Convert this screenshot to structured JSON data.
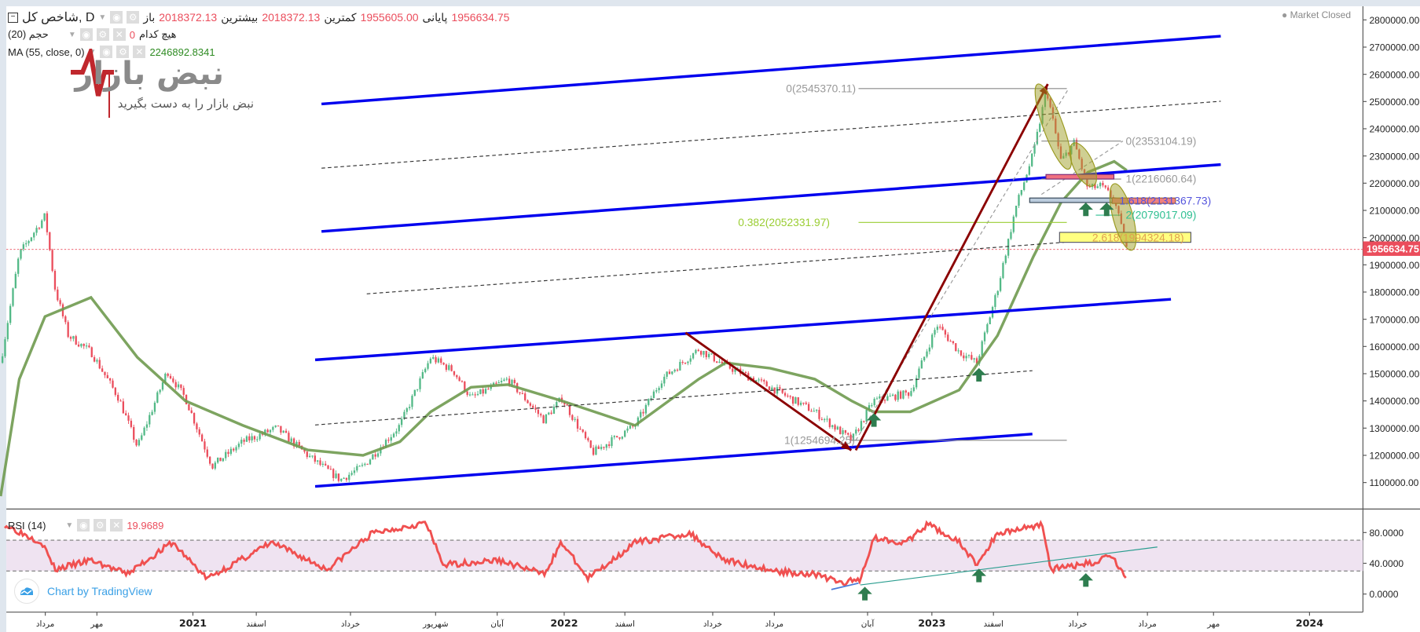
{
  "header": {
    "symbol": "شاخص کل, D",
    "open_label": "باز",
    "open": "2018372.13",
    "high_label": "بیشترین",
    "high": "2018372.13",
    "low_label": "کمترین",
    "low": "1955605.00",
    "close_label": "پایانی",
    "close": "1956634.75",
    "volume_label": "حجم (20)",
    "volume_none": "هیچ کدام",
    "volume_value": "0",
    "ma_label": "MA (55, close, 0)",
    "ma_value": "2246892.8341"
  },
  "status": "Market Closed",
  "logo": {
    "name": "نبض بازار",
    "tagline": "نبض بازار را به دست بگیرید"
  },
  "branding": "Chart by TradingView",
  "rsi": {
    "label": "RSI (14)",
    "value": "19.9689"
  },
  "last_price_label": "1956634.75",
  "colors": {
    "up": "#53b987",
    "down": "#eb4d5c",
    "ma": "#6f9a4f",
    "channel": "#0000ee",
    "arrow": "#8b0000",
    "rsi": "#f05050",
    "rsi_band": "#efe3f1"
  },
  "fib_labels": {
    "top": "0(2545370.11)",
    "bottom": "1(1254694.25)",
    "f0382": "0.382(2052331.97)",
    "ext0": "0(2353104.19)",
    "ext1": "1(2216060.64)",
    "ext1618": "1.618(2131367.73)",
    "ext2": "2(2079017.09)",
    "ext2618": "2.618(1994324.18)"
  },
  "chart_data": [
    {
      "type": "candlestick",
      "ylim": [
        1000000,
        2850000
      ],
      "y_ticks": [
        "2800000.00",
        "2700000.00",
        "2600000.00",
        "2500000.00",
        "2400000.00",
        "2300000.00",
        "2200000.00",
        "2100000.00",
        "2000000.00",
        "1900000.00",
        "1800000.00",
        "1700000.00",
        "1600000.00",
        "1500000.00",
        "1400000.00",
        "1300000.00",
        "1200000.00",
        "1100000.00"
      ],
      "x_ticks": [
        "مرداد",
        "مهر",
        "2021",
        "اسفند",
        "خرداد",
        "شهریور",
        "آبان",
        "2022",
        "اسفند",
        "خرداد",
        "مرداد",
        "آبان",
        "2023",
        "اسفند",
        "خرداد",
        "مرداد",
        "مهر",
        "2024"
      ],
      "close_path": [
        [
          "2020-06-24",
          1540000
        ],
        [
          "2020-07-12",
          1940000
        ],
        [
          "2020-08-07",
          2080000
        ],
        [
          "2020-08-17",
          1810000
        ],
        [
          "2020-08-30",
          1640000
        ],
        [
          "2020-09-22",
          1580000
        ],
        [
          "2020-10-19",
          1410000
        ],
        [
          "2020-11-07",
          1230000
        ],
        [
          "2020-12-06",
          1510000
        ],
        [
          "2020-12-24",
          1410000
        ],
        [
          "2021-01-20",
          1160000
        ],
        [
          "2021-02-20",
          1250000
        ],
        [
          "2021-03-23",
          1300000
        ],
        [
          "2021-04-23",
          1200000
        ],
        [
          "2021-05-25",
          1110000
        ],
        [
          "2021-06-17",
          1160000
        ],
        [
          "2021-07-23",
          1310000
        ],
        [
          "2021-08-23",
          1560000
        ],
        [
          "2021-09-15",
          1510000
        ],
        [
          "2021-10-02",
          1410000
        ],
        [
          "2021-11-08",
          1480000
        ],
        [
          "2021-12-13",
          1330000
        ],
        [
          "2021-12-31",
          1410000
        ],
        [
          "2022-01-31",
          1210000
        ],
        [
          "2022-03-12",
          1310000
        ],
        [
          "2022-04-08",
          1480000
        ],
        [
          "2022-05-14",
          1590000
        ],
        [
          "2022-06-10",
          1530000
        ],
        [
          "2022-07-24",
          1450000
        ],
        [
          "2022-09-07",
          1360000
        ],
        [
          "2022-10-13",
          1254694
        ],
        [
          "2022-11-04",
          1400000
        ],
        [
          "2022-12-10",
          1430000
        ],
        [
          "2023-01-06",
          1680000
        ],
        [
          "2023-01-28",
          1580000
        ],
        [
          "2023-02-15",
          1540000
        ],
        [
          "2023-03-05",
          1810000
        ],
        [
          "2023-03-23",
          2110000
        ],
        [
          "2023-04-10",
          2310000
        ],
        [
          "2023-04-23",
          2545370
        ],
        [
          "2023-05-07",
          2280000
        ],
        [
          "2023-05-20",
          2350000
        ],
        [
          "2023-06-03",
          2180000
        ],
        [
          "2023-06-16",
          2190000
        ],
        [
          "2023-06-29",
          2140000
        ],
        [
          "2023-07-11",
          1956634.75
        ]
      ],
      "series": [
        {
          "name": "MA (55, close, 0)",
          "values": [
            [
              "2020-06-24",
              1050000
            ],
            [
              "2020-07-12",
              1480000
            ],
            [
              "2020-08-07",
              1710000
            ],
            [
              "2020-09-22",
              1780000
            ],
            [
              "2020-11-07",
              1560000
            ],
            [
              "2020-12-24",
              1400000
            ],
            [
              "2021-02-20",
              1310000
            ],
            [
              "2021-04-23",
              1220000
            ],
            [
              "2021-06-17",
              1200000
            ],
            [
              "2021-07-23",
              1250000
            ],
            [
              "2021-08-23",
              1360000
            ],
            [
              "2021-10-02",
              1450000
            ],
            [
              "2021-11-08",
              1460000
            ],
            [
              "2021-12-31",
              1400000
            ],
            [
              "2022-03-12",
              1310000
            ],
            [
              "2022-05-14",
              1480000
            ],
            [
              "2022-06-10",
              1540000
            ],
            [
              "2022-07-24",
              1520000
            ],
            [
              "2022-09-07",
              1480000
            ],
            [
              "2022-10-13",
              1400000
            ],
            [
              "2022-11-04",
              1360000
            ],
            [
              "2022-12-10",
              1360000
            ],
            [
              "2023-01-28",
              1440000
            ],
            [
              "2023-03-05",
              1640000
            ],
            [
              "2023-04-10",
              1930000
            ],
            [
              "2023-05-07",
              2130000
            ],
            [
              "2023-06-03",
              2240000
            ],
            [
              "2023-06-29",
              2280000
            ],
            [
              "2023-07-11",
              2246892.83
            ]
          ]
        }
      ]
    },
    {
      "type": "line",
      "title": "RSI (14)",
      "ylim": [
        -10,
        100
      ],
      "y_ticks": [
        "80.0000",
        "40.0000",
        "0.0000"
      ],
      "bands": [
        30,
        70
      ],
      "values": [
        [
          "2020-06-28",
          90
        ],
        [
          "2020-08-04",
          67
        ],
        [
          "2020-08-17",
          32
        ],
        [
          "2020-09-22",
          44
        ],
        [
          "2020-10-27",
          26
        ],
        [
          "2020-12-11",
          67
        ],
        [
          "2021-01-15",
          20
        ],
        [
          "2021-03-18",
          67
        ],
        [
          "2021-05-12",
          32
        ],
        [
          "2021-06-26",
          79
        ],
        [
          "2021-08-18",
          93
        ],
        [
          "2021-09-05",
          38
        ],
        [
          "2021-10-29",
          44
        ],
        [
          "2021-12-13",
          26
        ],
        [
          "2021-12-31",
          67
        ],
        [
          "2022-01-26",
          20
        ],
        [
          "2022-03-12",
          67
        ],
        [
          "2022-05-05",
          79
        ],
        [
          "2022-06-10",
          44
        ],
        [
          "2022-08-02",
          29
        ],
        [
          "2022-09-07",
          26
        ],
        [
          "2022-10-04",
          14
        ],
        [
          "2022-10-22",
          20
        ],
        [
          "2022-11-04",
          73
        ],
        [
          "2022-12-06",
          67
        ],
        [
          "2022-12-28",
          91
        ],
        [
          "2023-01-28",
          67
        ],
        [
          "2023-02-15",
          38
        ],
        [
          "2023-03-05",
          79
        ],
        [
          "2023-04-19",
          91
        ],
        [
          "2023-04-27",
          32
        ],
        [
          "2023-05-25",
          38
        ],
        [
          "2023-06-11",
          41
        ],
        [
          "2023-06-25",
          53
        ],
        [
          "2023-07-11",
          19.97
        ]
      ]
    }
  ]
}
